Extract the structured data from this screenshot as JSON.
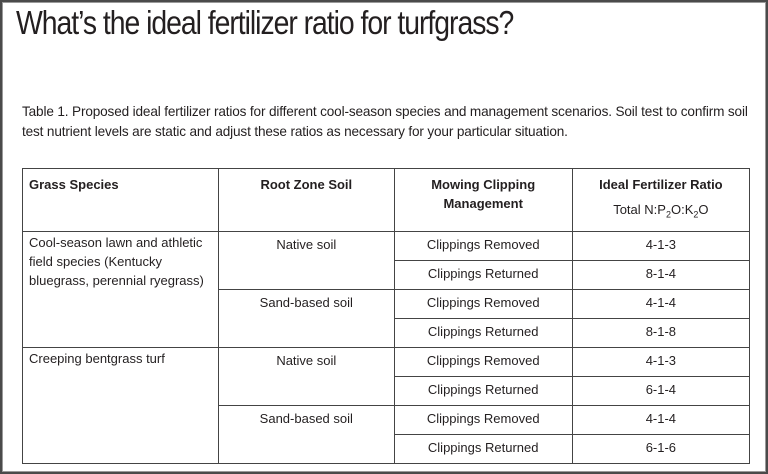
{
  "title": "What’s the ideal fertilizer ratio for turfgrass?",
  "caption": "Table 1. Proposed ideal fertilizer ratios for different cool-season species and management scenarios.  Soil test to confirm soil test nutrient levels are static and adjust these ratios as necessary for your particular situation.",
  "headers": {
    "species": "Grass Species",
    "soil": "Root Zone Soil",
    "mowing": "Mowing Clipping Management",
    "ratio": "Ideal Fertilizer Ratio",
    "ratio_sub": {
      "prefix": "Total N:P",
      "p_index": "2",
      "mid1": "O",
      "mid2": ":K",
      "k_index": "2",
      "suffix": "O"
    }
  },
  "groups": [
    {
      "species": "Cool-season lawn and athletic field species (Kentucky bluegrass, perennial ryegrass)",
      "soils": [
        {
          "soil": "Native soil",
          "rows": [
            {
              "mowing": "Clippings Removed",
              "ratio": "4-1-3"
            },
            {
              "mowing": "Clippings Returned",
              "ratio": "8-1-4"
            }
          ]
        },
        {
          "soil": "Sand-based soil",
          "rows": [
            {
              "mowing": "Clippings Removed",
              "ratio": "4-1-4"
            },
            {
              "mowing": "Clippings Returned",
              "ratio": "8-1-8"
            }
          ]
        }
      ]
    },
    {
      "species": "Creeping bentgrass turf",
      "soils": [
        {
          "soil": "Native soil",
          "rows": [
            {
              "mowing": "Clippings Removed",
              "ratio": "4-1-3"
            },
            {
              "mowing": "Clippings Returned",
              "ratio": "6-1-4"
            }
          ]
        },
        {
          "soil": "Sand-based soil",
          "rows": [
            {
              "mowing": "Clippings Removed",
              "ratio": "4-1-4"
            },
            {
              "mowing": "Clippings Returned",
              "ratio": "6-1-6"
            }
          ]
        }
      ]
    }
  ]
}
